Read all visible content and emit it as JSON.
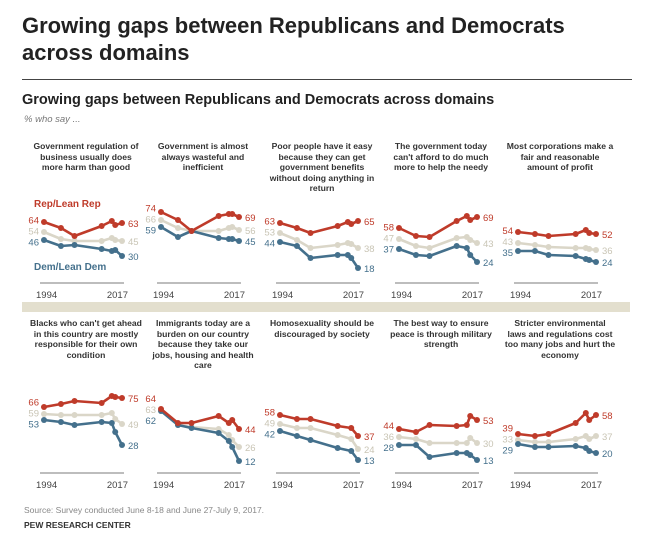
{
  "title": "Growing gaps between Republicans and Democrats across domains",
  "subtitle": "Growing gaps between Republicans and Democrats across domains",
  "note": "% who say ...",
  "source": "Source: Survey conducted June 8-18 and June 27-July 9, 2017.",
  "org": "PEW RESEARCH CENTER",
  "colors": {
    "rep": "#bf3b2a",
    "total": "#dad6c8",
    "dem": "#44708c"
  },
  "chart_data": {
    "type": "line",
    "legend": {
      "rep": "Rep/Lean Rep",
      "dem": "Dem/Lean Dem"
    },
    "x_start_label": "1994",
    "x_end_label": "2017",
    "panels": [
      {
        "title": "Government regulation of business usually does more harm than good",
        "x": [
          1994,
          1999,
          2003,
          2011,
          2014,
          2015,
          2017
        ],
        "rep": [
          64,
          58,
          50,
          60,
          65,
          61,
          63
        ],
        "total": [
          54,
          47,
          45,
          45,
          48,
          46,
          45
        ],
        "dem": [
          46,
          40,
          41,
          37,
          35,
          36,
          30
        ]
      },
      {
        "title": "Government is almost always wasteful and inefficient",
        "x": [
          1994,
          1999,
          2003,
          2011,
          2014,
          2015,
          2017
        ],
        "rep": [
          74,
          66,
          55,
          70,
          72,
          72,
          69
        ],
        "total": [
          66,
          58,
          55,
          55,
          58,
          59,
          56
        ],
        "dem": [
          59,
          49,
          55,
          48,
          47,
          47,
          45
        ]
      },
      {
        "title": "Poor people have it easy because they can get government benefits without doing anything in return",
        "x": [
          1994,
          1999,
          2003,
          2011,
          2014,
          2015,
          2017
        ],
        "rep": [
          63,
          58,
          53,
          60,
          64,
          62,
          65
        ],
        "total": [
          53,
          46,
          38,
          41,
          43,
          42,
          38
        ],
        "dem": [
          44,
          40,
          28,
          31,
          31,
          28,
          18
        ]
      },
      {
        "title": "The government today can't afford to do much more to help the needy",
        "x": [
          1994,
          1999,
          2003,
          2011,
          2014,
          2015,
          2017
        ],
        "rep": [
          58,
          50,
          49,
          65,
          70,
          66,
          69
        ],
        "total": [
          47,
          40,
          38,
          48,
          49,
          46,
          43
        ],
        "dem": [
          37,
          31,
          30,
          40,
          38,
          31,
          24
        ]
      },
      {
        "title": "Most corporations make a fair and reasonable amount of profit",
        "x": [
          1994,
          1999,
          2003,
          2011,
          2014,
          2015,
          2017
        ],
        "rep": [
          54,
          52,
          50,
          52,
          56,
          53,
          52
        ],
        "total": [
          43,
          41,
          39,
          38,
          38,
          37,
          36
        ],
        "dem": [
          35,
          35,
          31,
          30,
          27,
          26,
          24
        ]
      },
      {
        "title": "Blacks who can't get ahead in this country are mostly responsible for their own condition",
        "x": [
          1994,
          1999,
          2003,
          2011,
          2014,
          2015,
          2017
        ],
        "rep": [
          66,
          69,
          72,
          70,
          77,
          76,
          75
        ],
        "total": [
          59,
          58,
          58,
          58,
          60,
          54,
          49
        ],
        "dem": [
          53,
          51,
          48,
          51,
          50,
          41,
          28
        ]
      },
      {
        "title": "Immigrants today are a burden on our country because they take our jobs, housing and health care",
        "x": [
          1994,
          1999,
          2003,
          2011,
          2014,
          2015,
          2017
        ],
        "rep": [
          64,
          50,
          50,
          57,
          50,
          53,
          44
        ],
        "total": [
          63,
          48,
          46,
          44,
          38,
          33,
          26
        ],
        "dem": [
          62,
          48,
          45,
          40,
          32,
          26,
          12
        ]
      },
      {
        "title": "Homosexuality should be discouraged by society",
        "x": [
          1994,
          1999,
          2003,
          2011,
          2015,
          2017
        ],
        "rep": [
          58,
          54,
          54,
          47,
          45,
          37
        ],
        "total": [
          49,
          45,
          45,
          38,
          34,
          24
        ],
        "dem": [
          42,
          37,
          33,
          25,
          22,
          13
        ]
      },
      {
        "title": "The best way to ensure peace is through military strength",
        "x": [
          1994,
          1999,
          2003,
          2011,
          2014,
          2015,
          2017
        ],
        "rep": [
          44,
          41,
          48,
          47,
          48,
          57,
          53
        ],
        "total": [
          36,
          34,
          30,
          30,
          30,
          35,
          30
        ],
        "dem": [
          28,
          28,
          16,
          20,
          20,
          18,
          13
        ]
      },
      {
        "title": "Stricter environmental laws and regulations cost too many jobs and hurt the economy",
        "x": [
          1994,
          1999,
          2003,
          2011,
          2014,
          2015,
          2017
        ],
        "rep": [
          39,
          37,
          39,
          50,
          60,
          53,
          58
        ],
        "total": [
          33,
          31,
          31,
          34,
          37,
          34,
          37
        ],
        "dem": [
          29,
          26,
          26,
          27,
          25,
          22,
          20
        ]
      }
    ]
  }
}
